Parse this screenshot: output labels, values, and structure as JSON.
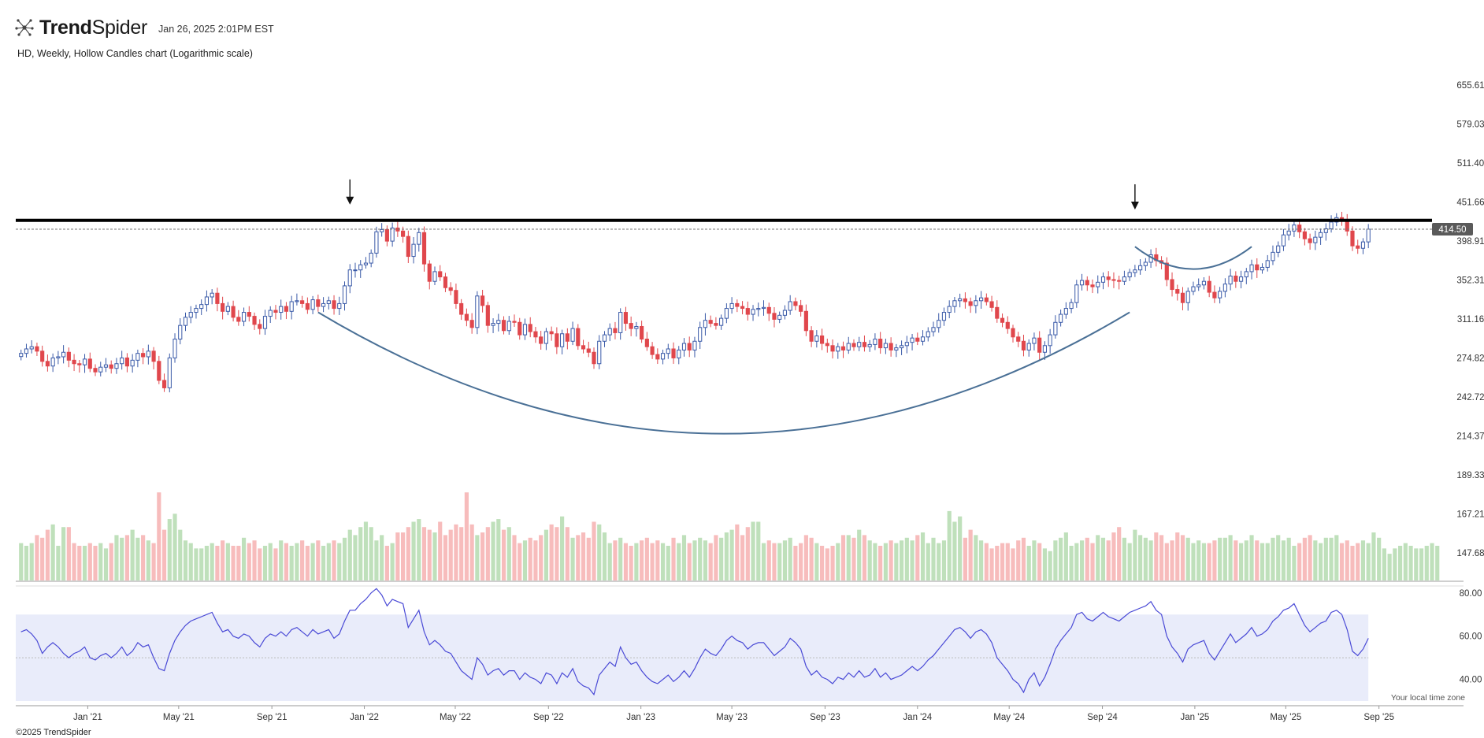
{
  "header": {
    "brand_bold": "Trend",
    "brand_regular": "Spider",
    "timestamp": "Jan 26, 2025 2:01PM EST",
    "subtitle": "HD, Weekly, Hollow Candles chart (Logarithmic scale)"
  },
  "footer": {
    "copyright": "©2025 TrendSpider",
    "timezone_note": "Your local time zone"
  },
  "colors": {
    "up": "#3a5aa8",
    "down": "#e0474c",
    "vol_up": "#bfe0bb",
    "vol_down": "#f7bcbc",
    "rsi_line": "#4a4ad6",
    "rsi_band": "#e9ecfa",
    "annotation": "#4a7096",
    "resistance": "#000000",
    "price_tag": "#5a5a5a"
  },
  "chart_data": {
    "type": "candlestick",
    "symbol": "HD",
    "interval": "Weekly",
    "scale": "log",
    "y_ticks": [
      "655.61",
      "579.03",
      "511.40",
      "451.66",
      "398.91",
      "352.31",
      "311.16",
      "274.82",
      "242.72",
      "214.37",
      "189.33",
      "167.21",
      "147.68"
    ],
    "y_range": [
      136,
      740
    ],
    "last_price": "414.50",
    "resistance_level": 420,
    "x_ticks": [
      {
        "label": "Jan '21",
        "date": "2021-01-01"
      },
      {
        "label": "May '21",
        "date": "2021-05-01"
      },
      {
        "label": "Sep '21",
        "date": "2021-09-01"
      },
      {
        "label": "Jan '22",
        "date": "2022-01-01"
      },
      {
        "label": "May '22",
        "date": "2022-05-01"
      },
      {
        "label": "Sep '22",
        "date": "2022-09-01"
      },
      {
        "label": "Jan '23",
        "date": "2023-01-01"
      },
      {
        "label": "May '23",
        "date": "2023-05-01"
      },
      {
        "label": "Sep '23",
        "date": "2023-09-01"
      },
      {
        "label": "Jan '24",
        "date": "2024-01-01"
      },
      {
        "label": "May '24",
        "date": "2024-05-01"
      },
      {
        "label": "Sep '24",
        "date": "2024-09-01"
      },
      {
        "label": "Jan '25",
        "date": "2025-01-01"
      },
      {
        "label": "May '25",
        "date": "2025-05-01"
      },
      {
        "label": "Sep '25",
        "date": "2025-09-01"
      }
    ],
    "x_range": [
      "2020-09-28",
      "2025-11-10"
    ],
    "weekly_closes": [
      {
        "start": "2020-10-05",
        "closes": [
          279,
          283,
          285,
          281,
          272,
          268,
          275,
          276,
          280,
          273,
          270,
          269,
          274,
          266,
          263,
          267,
          269,
          266,
          270,
          275,
          268,
          273,
          279,
          276,
          281,
          272,
          256,
          250,
          275,
          292,
          305,
          313,
          318,
          322,
          326,
          334,
          338,
          327,
          319,
          324,
          313,
          309,
          318,
          314,
          306,
          302,
          314,
          320,
          318,
          324,
          319,
          329,
          330,
          327,
          321,
          331,
          324,
          327,
          330,
          322,
          327,
          346,
          364,
          364,
          370,
          372,
          384,
          411,
          414,
          399,
          416,
          412,
          405,
          380,
          395,
          410,
          371,
          351,
          362,
          356,
          344,
          341,
          327,
          316,
          310,
          303,
          335,
          325,
          305,
          307,
          310,
          300,
          309,
          308,
          296,
          306,
          299,
          294,
          288,
          299,
          297,
          285,
          297,
          290,
          302,
          286,
          283,
          280,
          270,
          290,
          296,
          302,
          298,
          318,
          307,
          302,
          304,
          292,
          285,
          278,
          274,
          279,
          283,
          275,
          282,
          288,
          282,
          290,
          303,
          310,
          307,
          305,
          312,
          322,
          327,
          324,
          322,
          316,
          321,
          322,
          323,
          317,
          311,
          315,
          320,
          329,
          325,
          319,
          300,
          290,
          295,
          288,
          286,
          281,
          285,
          282,
          288,
          285,
          289,
          285,
          287,
          292,
          284,
          288,
          282,
          284,
          286,
          289,
          293,
          290,
          294,
          299,
          303,
          310,
          318,
          324,
          330,
          332,
          329,
          325,
          330,
          333,
          329,
          323,
          312,
          308,
          302,
          294,
          290,
          282,
          288,
          293,
          280,
          286,
          296,
          308,
          316,
          322,
          328,
          347,
          352,
          347,
          345,
          350,
          356,
          353,
          352,
          351,
          356,
          361,
          364,
          369,
          373,
          382,
          375,
          372,
          353,
          342,
          338,
          328,
          340,
          345,
          347,
          351,
          339,
          333,
          340,
          348,
          357,
          351,
          356,
          362,
          370,
          364,
          367,
          375,
          385,
          393,
          407,
          412,
          420,
          411,
          402,
          397,
          404,
          410,
          415,
          424,
          430,
          425,
          412,
          393,
          390,
          398,
          414.5
        ]
      }
    ],
    "rsi": {
      "period": 14,
      "y_ticks": [
        "80.00",
        "60.00",
        "40.00"
      ],
      "band": [
        30,
        70
      ],
      "values_start": "2020-10-05",
      "values": [
        62,
        63,
        61,
        58,
        52,
        55,
        57,
        55,
        52,
        50,
        52,
        53,
        55,
        50,
        49,
        51,
        52,
        50,
        52,
        55,
        51,
        53,
        57,
        55,
        56,
        50,
        45,
        44,
        52,
        58,
        62,
        65,
        67,
        68,
        69,
        70,
        71,
        66,
        62,
        63,
        60,
        59,
        61,
        60,
        57,
        55,
        59,
        61,
        60,
        62,
        60,
        63,
        64,
        62,
        60,
        63,
        61,
        62,
        63,
        59,
        61,
        67,
        72,
        72,
        75,
        77,
        80,
        82,
        79,
        74,
        77,
        76,
        75,
        64,
        68,
        72,
        62,
        56,
        58,
        56,
        53,
        52,
        48,
        44,
        42,
        40,
        50,
        47,
        42,
        44,
        45,
        42,
        44,
        44,
        40,
        43,
        41,
        40,
        38,
        43,
        42,
        38,
        43,
        41,
        45,
        39,
        37,
        36,
        33,
        42,
        45,
        48,
        46,
        55,
        50,
        47,
        48,
        44,
        41,
        39,
        38,
        40,
        42,
        39,
        41,
        44,
        41,
        45,
        50,
        54,
        52,
        51,
        54,
        58,
        60,
        58,
        57,
        54,
        56,
        57,
        57,
        54,
        51,
        53,
        55,
        59,
        57,
        54,
        46,
        42,
        44,
        41,
        40,
        38,
        41,
        40,
        43,
        41,
        44,
        41,
        42,
        45,
        41,
        43,
        40,
        41,
        42,
        44,
        46,
        44,
        46,
        49,
        51,
        54,
        57,
        60,
        63,
        64,
        62,
        59,
        62,
        63,
        61,
        57,
        50,
        47,
        44,
        40,
        38,
        34,
        40,
        43,
        37,
        41,
        47,
        54,
        58,
        61,
        64,
        70,
        71,
        68,
        67,
        69,
        71,
        69,
        68,
        67,
        69,
        71,
        72,
        73,
        74,
        76,
        72,
        70,
        60,
        55,
        52,
        48,
        54,
        56,
        57,
        58,
        52,
        49,
        53,
        57,
        61,
        57,
        59,
        61,
        64,
        60,
        61,
        63,
        67,
        69,
        72,
        73,
        75,
        70,
        65,
        62,
        64,
        66,
        67,
        71,
        72,
        70,
        63,
        53,
        51,
        54,
        59
      ]
    },
    "volume": {
      "values_start": "2020-10-05",
      "values_millions": [
        14,
        13,
        14,
        17,
        16,
        19,
        21,
        13,
        20,
        20,
        14,
        13,
        13,
        14,
        13,
        14,
        12,
        14,
        17,
        16,
        17,
        19,
        16,
        17,
        15,
        14,
        33,
        19,
        23,
        25,
        19,
        15,
        14,
        12,
        12,
        13,
        14,
        13,
        15,
        14,
        13,
        13,
        16,
        14,
        15,
        12,
        13,
        14,
        12,
        15,
        14,
        13,
        14,
        15,
        13,
        14,
        15,
        13,
        14,
        15,
        14,
        16,
        19,
        17,
        20,
        22,
        20,
        15,
        17,
        13,
        14,
        18,
        18,
        20,
        22,
        23,
        20,
        19,
        18,
        22,
        17,
        19,
        21,
        20,
        33,
        21,
        17,
        18,
        20,
        22,
        23,
        19,
        20,
        17,
        14,
        15,
        16,
        15,
        17,
        19,
        21,
        20,
        24,
        20,
        16,
        17,
        18,
        16,
        22,
        21,
        18,
        14,
        15,
        16,
        14,
        13,
        14,
        15,
        16,
        14,
        15,
        14,
        13,
        16,
        14,
        17,
        14,
        15,
        16,
        15,
        14,
        17,
        16,
        18,
        19,
        21,
        17,
        20,
        22,
        22,
        14,
        15,
        14,
        14,
        15,
        16,
        13,
        14,
        17,
        16,
        14,
        13,
        12,
        13,
        14,
        17,
        17,
        16,
        19,
        17,
        15,
        14,
        13,
        14,
        15,
        14,
        15,
        16,
        15,
        17,
        18,
        14,
        16,
        14,
        15,
        26,
        22,
        24,
        16,
        19,
        17,
        15,
        14,
        12,
        13,
        14,
        14,
        12,
        15,
        16,
        13,
        15,
        14,
        12,
        11,
        15,
        16,
        18,
        13,
        14,
        15,
        16,
        14,
        17,
        16,
        15,
        18,
        20,
        16,
        14,
        19,
        17,
        16,
        15,
        18,
        17,
        14,
        15,
        18,
        17,
        16,
        14,
        15,
        14,
        14,
        15,
        16,
        16,
        17,
        15,
        14,
        15,
        17,
        15,
        14,
        14,
        16,
        17,
        15,
        16,
        13,
        14,
        16,
        17,
        15,
        14,
        16,
        16,
        17,
        14,
        15,
        13,
        14,
        15,
        14,
        18,
        16,
        12,
        10,
        12,
        13,
        14,
        13,
        12,
        12,
        13,
        14,
        13
      ]
    },
    "annotations": [
      {
        "type": "arrow-down",
        "date": "2021-12-13",
        "price": 455
      },
      {
        "type": "arrow-down",
        "date": "2024-10-14",
        "price": 448
      },
      {
        "type": "cup",
        "from_date": "2021-11-01",
        "to_date": "2024-10-07",
        "edge_price": 318,
        "bottom_price": 216
      },
      {
        "type": "handle",
        "from_date": "2024-10-14",
        "to_date": "2025-03-17",
        "edge_price": 392,
        "bottom_price": 365
      }
    ]
  }
}
